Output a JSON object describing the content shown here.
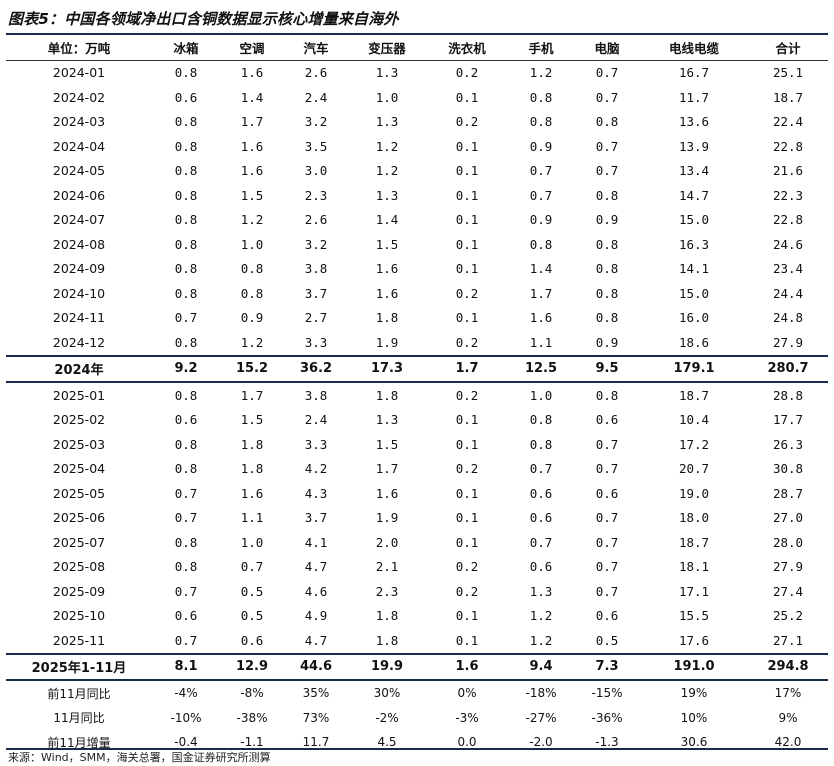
{
  "title": "图表5：中国各领域净出口含铜数据显示核心增量来自海外",
  "source": "来源：Wind，SMM，海关总署，国金证券研究所测算",
  "header": [
    "单位：万吨",
    "冰箱",
    "空调",
    "汽车",
    "变压器",
    "洗衣机",
    "手机",
    "电脑",
    "电线电缆",
    "合计"
  ],
  "rows": [
    {
      "type": "month",
      "cells": [
        "2024-01",
        "0.8",
        "1.6",
        "2.6",
        "1.3",
        "0.2",
        "1.2",
        "0.7",
        "16.7",
        "25.1"
      ]
    },
    {
      "type": "month",
      "cells": [
        "2024-02",
        "0.6",
        "1.4",
        "2.4",
        "1.0",
        "0.1",
        "0.8",
        "0.7",
        "11.7",
        "18.7"
      ]
    },
    {
      "type": "month",
      "cells": [
        "2024-03",
        "0.8",
        "1.7",
        "3.2",
        "1.3",
        "0.2",
        "0.8",
        "0.8",
        "13.6",
        "22.4"
      ]
    },
    {
      "type": "month",
      "cells": [
        "2024-04",
        "0.8",
        "1.6",
        "3.5",
        "1.2",
        "0.1",
        "0.9",
        "0.7",
        "13.9",
        "22.8"
      ]
    },
    {
      "type": "month",
      "cells": [
        "2024-05",
        "0.8",
        "1.6",
        "3.0",
        "1.2",
        "0.1",
        "0.7",
        "0.7",
        "13.4",
        "21.6"
      ]
    },
    {
      "type": "month",
      "cells": [
        "2024-06",
        "0.8",
        "1.5",
        "2.3",
        "1.3",
        "0.1",
        "0.7",
        "0.8",
        "14.7",
        "22.3"
      ]
    },
    {
      "type": "month",
      "cells": [
        "2024-07",
        "0.8",
        "1.2",
        "2.6",
        "1.4",
        "0.1",
        "0.9",
        "0.9",
        "15.0",
        "22.8"
      ]
    },
    {
      "type": "month",
      "cells": [
        "2024-08",
        "0.8",
        "1.0",
        "3.2",
        "1.5",
        "0.1",
        "0.8",
        "0.8",
        "16.3",
        "24.6"
      ]
    },
    {
      "type": "month",
      "cells": [
        "2024-09",
        "0.8",
        "0.8",
        "3.8",
        "1.6",
        "0.1",
        "1.4",
        "0.8",
        "14.1",
        "23.4"
      ]
    },
    {
      "type": "month",
      "cells": [
        "2024-10",
        "0.8",
        "0.8",
        "3.7",
        "1.6",
        "0.2",
        "1.7",
        "0.8",
        "15.0",
        "24.4"
      ]
    },
    {
      "type": "month",
      "cells": [
        "2024-11",
        "0.7",
        "0.9",
        "2.7",
        "1.8",
        "0.1",
        "1.6",
        "0.8",
        "16.0",
        "24.8"
      ]
    },
    {
      "type": "month",
      "cells": [
        "2024-12",
        "0.8",
        "1.2",
        "3.3",
        "1.9",
        "0.2",
        "1.1",
        "0.9",
        "18.6",
        "27.9"
      ]
    },
    {
      "type": "sum",
      "cells": [
        "2024年",
        "9.2",
        "15.2",
        "36.2",
        "17.3",
        "1.7",
        "12.5",
        "9.5",
        "179.1",
        "280.7"
      ]
    },
    {
      "type": "month",
      "cells": [
        "2025-01",
        "0.8",
        "1.7",
        "3.8",
        "1.8",
        "0.2",
        "1.0",
        "0.8",
        "18.7",
        "28.8"
      ]
    },
    {
      "type": "month",
      "cells": [
        "2025-02",
        "0.6",
        "1.5",
        "2.4",
        "1.3",
        "0.1",
        "0.8",
        "0.6",
        "10.4",
        "17.7"
      ]
    },
    {
      "type": "month",
      "cells": [
        "2025-03",
        "0.8",
        "1.8",
        "3.3",
        "1.5",
        "0.1",
        "0.8",
        "0.7",
        "17.2",
        "26.3"
      ]
    },
    {
      "type": "month",
      "cells": [
        "2025-04",
        "0.8",
        "1.8",
        "4.2",
        "1.7",
        "0.2",
        "0.7",
        "0.7",
        "20.7",
        "30.8"
      ]
    },
    {
      "type": "month",
      "cells": [
        "2025-05",
        "0.7",
        "1.6",
        "4.3",
        "1.6",
        "0.1",
        "0.6",
        "0.6",
        "19.0",
        "28.7"
      ]
    },
    {
      "type": "month",
      "cells": [
        "2025-06",
        "0.7",
        "1.1",
        "3.7",
        "1.9",
        "0.1",
        "0.6",
        "0.7",
        "18.0",
        "27.0"
      ]
    },
    {
      "type": "month",
      "cells": [
        "2025-07",
        "0.8",
        "1.0",
        "4.1",
        "2.0",
        "0.1",
        "0.7",
        "0.7",
        "18.7",
        "28.0"
      ]
    },
    {
      "type": "month",
      "cells": [
        "2025-08",
        "0.8",
        "0.7",
        "4.7",
        "2.1",
        "0.2",
        "0.6",
        "0.7",
        "18.1",
        "27.9"
      ]
    },
    {
      "type": "month",
      "cells": [
        "2025-09",
        "0.7",
        "0.5",
        "4.6",
        "2.3",
        "0.2",
        "1.3",
        "0.7",
        "17.1",
        "27.4"
      ]
    },
    {
      "type": "month",
      "cells": [
        "2025-10",
        "0.6",
        "0.5",
        "4.9",
        "1.8",
        "0.1",
        "1.2",
        "0.6",
        "15.5",
        "25.2"
      ]
    },
    {
      "type": "month",
      "cells": [
        "2025-11",
        "0.7",
        "0.6",
        "4.7",
        "1.8",
        "0.1",
        "1.2",
        "0.5",
        "17.6",
        "27.1"
      ]
    },
    {
      "type": "sum",
      "cells": [
        "2025年1-11月",
        "8.1",
        "12.9",
        "44.6",
        "19.9",
        "1.6",
        "9.4",
        "7.3",
        "191.0",
        "294.8"
      ]
    },
    {
      "type": "ratio",
      "cells": [
        "前11月同比",
        "-4%",
        "-8%",
        "35%",
        "30%",
        "0%",
        "-18%",
        "-15%",
        "19%",
        "17%"
      ]
    },
    {
      "type": "ratio",
      "cells": [
        "11月同比",
        "-10%",
        "-38%",
        "73%",
        "-2%",
        "-3%",
        "-27%",
        "-36%",
        "10%",
        "9%"
      ]
    },
    {
      "type": "ratio",
      "cells": [
        "前11月增量",
        "-0.4",
        "-1.1",
        "11.7",
        "4.5",
        "0.0",
        "-2.0",
        "-1.3",
        "30.6",
        "42.0"
      ]
    }
  ]
}
